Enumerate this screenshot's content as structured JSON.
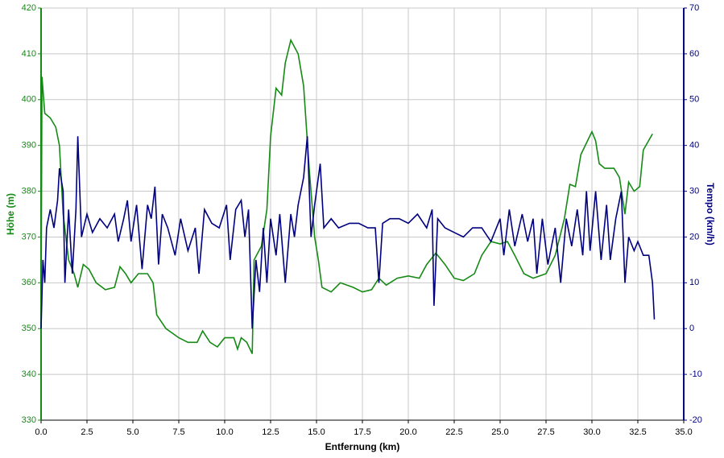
{
  "chart_data": {
    "type": "line",
    "xlabel": "Entfernung (km)",
    "ylabel": "Höhe (m)",
    "y2label": "Tempo (km/h)",
    "xlim": [
      0,
      35
    ],
    "ylim": [
      330,
      420
    ],
    "y2lim": [
      -20,
      70
    ],
    "grid": true,
    "xticks": [
      {
        "value": 0,
        "label": "0.0"
      },
      2.5,
      {
        "value": 5,
        "label": "5.0"
      },
      7.5,
      {
        "value": 10,
        "label": "10.0"
      },
      12.5,
      {
        "value": 15,
        "label": "15.0"
      },
      17.5,
      {
        "value": 20,
        "label": "20.0"
      },
      22.5,
      {
        "value": 25,
        "label": "25.0"
      },
      27.5,
      {
        "value": 30,
        "label": "30.0"
      },
      32.5,
      {
        "value": 35,
        "label": "35.0"
      }
    ],
    "yticks": [
      330,
      340,
      350,
      360,
      370,
      380,
      390,
      400,
      410,
      420
    ],
    "y2ticks": [
      -20,
      -10,
      0,
      10,
      20,
      30,
      40,
      50,
      60,
      70
    ],
    "series": [
      {
        "name": "Höhe",
        "color": "#158a15",
        "axis": "y",
        "x": [
          0.0,
          0.05,
          0.2,
          0.5,
          0.8,
          1.0,
          1.2,
          1.5,
          1.8,
          2.0,
          2.3,
          2.6,
          3.0,
          3.5,
          4.0,
          4.3,
          4.6,
          4.9,
          5.3,
          5.8,
          6.1,
          6.3,
          6.8,
          7.5,
          8.0,
          8.5,
          8.8,
          9.2,
          9.6,
          10.0,
          10.5,
          10.7,
          10.9,
          11.2,
          11.5,
          11.6,
          12.0,
          12.3,
          12.5,
          12.8,
          13.1,
          13.3,
          13.6,
          14.0,
          14.3,
          14.6,
          14.9,
          15.1,
          15.3,
          15.8,
          16.3,
          17.0,
          17.5,
          18.0,
          18.4,
          18.8,
          19.4,
          20.0,
          20.6,
          21.0,
          21.5,
          22.0,
          22.5,
          23.0,
          23.6,
          24.0,
          24.5,
          25.0,
          25.4,
          25.8,
          26.3,
          26.8,
          27.5,
          28.0,
          28.5,
          28.8,
          29.1,
          29.4,
          30.0,
          30.2,
          30.4,
          30.7,
          31.2,
          31.5,
          31.8,
          32.0,
          32.3,
          32.6,
          32.8,
          33.3
        ],
        "values": [
          351,
          405,
          397,
          396,
          394,
          390,
          375,
          365,
          362,
          359,
          364,
          363,
          360,
          358.5,
          359,
          363.5,
          362,
          360,
          362,
          362,
          360,
          353,
          350,
          348,
          347,
          347,
          349.5,
          347,
          346,
          348,
          348,
          345.5,
          348,
          347,
          344.5,
          365,
          368,
          376,
          392,
          402.5,
          401,
          408,
          413,
          410,
          403,
          385,
          370,
          365,
          359,
          358,
          360,
          359,
          358,
          358.5,
          361,
          359.5,
          361,
          361.5,
          361,
          364,
          366.5,
          364,
          361,
          360.5,
          362,
          366,
          369,
          368.5,
          369,
          366,
          362,
          361,
          362,
          366,
          374,
          381.5,
          381,
          388,
          393,
          391,
          386,
          385,
          385,
          383,
          375,
          382,
          380,
          381,
          389,
          392.5
        ]
      },
      {
        "name": "Tempo",
        "color": "#00007f",
        "axis": "y2",
        "x": [
          0.0,
          0.1,
          0.2,
          0.3,
          0.5,
          0.7,
          0.9,
          1.0,
          1.2,
          1.3,
          1.4,
          1.5,
          1.7,
          1.9,
          2.0,
          2.2,
          2.5,
          2.8,
          3.2,
          3.6,
          4.0,
          4.2,
          4.5,
          4.7,
          4.9,
          5.2,
          5.5,
          5.8,
          6.0,
          6.2,
          6.4,
          6.6,
          6.9,
          7.3,
          7.6,
          8.0,
          8.4,
          8.6,
          8.9,
          9.3,
          9.7,
          10.1,
          10.3,
          10.6,
          10.9,
          11.1,
          11.3,
          11.5,
          11.7,
          11.9,
          12.1,
          12.3,
          12.5,
          12.8,
          13.0,
          13.3,
          13.6,
          13.8,
          14.0,
          14.3,
          14.5,
          14.7,
          14.9,
          15.2,
          15.4,
          15.8,
          16.2,
          16.8,
          17.3,
          17.8,
          18.2,
          18.4,
          18.6,
          19.0,
          19.5,
          20.0,
          20.5,
          21.0,
          21.3,
          21.4,
          21.6,
          22.0,
          22.5,
          23.0,
          23.5,
          24.0,
          24.5,
          25.0,
          25.2,
          25.5,
          25.8,
          26.2,
          26.5,
          26.8,
          27.0,
          27.3,
          27.6,
          28.0,
          28.3,
          28.6,
          28.9,
          29.2,
          29.5,
          29.7,
          29.9,
          30.2,
          30.5,
          30.8,
          31.0,
          31.3,
          31.6,
          31.8,
          32.0,
          32.3,
          32.5,
          32.8,
          33.1,
          33.3,
          33.4
        ],
        "values": [
          0,
          15,
          10,
          22,
          26,
          22,
          28,
          35,
          30,
          10,
          18,
          26,
          12,
          26,
          42,
          20,
          25,
          21,
          24,
          22,
          25,
          19,
          24,
          28,
          19,
          27,
          13,
          27,
          24,
          31,
          14,
          25,
          22,
          16,
          24,
          17,
          22,
          12,
          26,
          23,
          22,
          27,
          15,
          26,
          28,
          20,
          26,
          0,
          15,
          8,
          22,
          10,
          24,
          16,
          25,
          10,
          25,
          20,
          27,
          33,
          42,
          20,
          27,
          36,
          22,
          24,
          22,
          23,
          23,
          22,
          22,
          10,
          23,
          24,
          24,
          23,
          25,
          22,
          26,
          5,
          24,
          22,
          21,
          20,
          22,
          22,
          19,
          24,
          16,
          26,
          18,
          25,
          19,
          24,
          12,
          24,
          14,
          22,
          10,
          24,
          18,
          26,
          16,
          30,
          17,
          30,
          15,
          27,
          15,
          24,
          30,
          10,
          20,
          17,
          19,
          16,
          16,
          10,
          2
        ]
      }
    ]
  }
}
